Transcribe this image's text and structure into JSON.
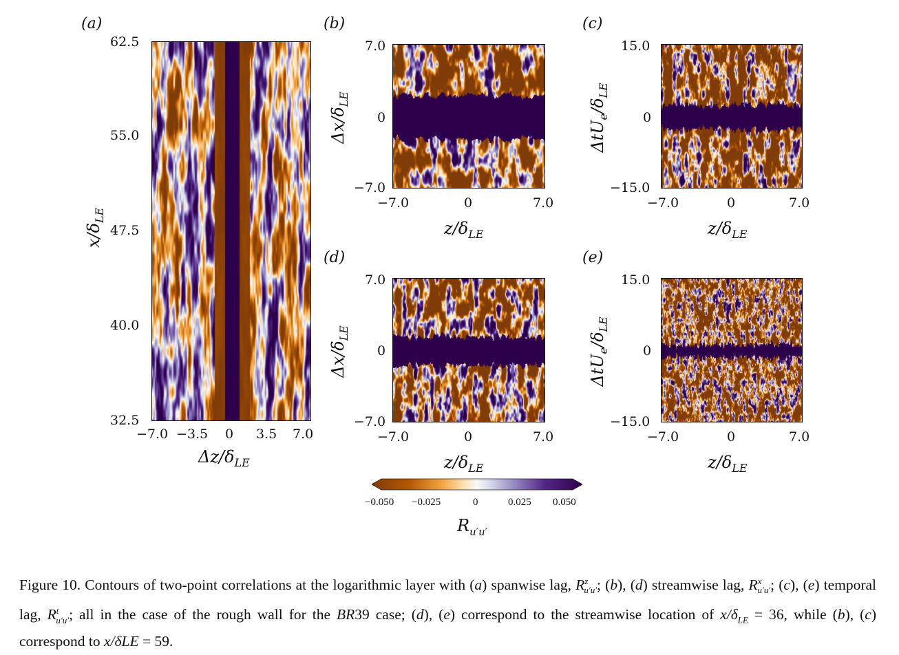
{
  "panels": {
    "a": {
      "label": "(a)",
      "y_ticks": [
        "62.5",
        "55.0",
        "47.5",
        "40.0",
        "32.5"
      ],
      "x_ticks": [
        "−7.0",
        "−3.5",
        "0",
        "3.5",
        "7.0"
      ],
      "xlabel": "Δz/δ",
      "xlabel_sub": "LE",
      "ylabel": "x/δ",
      "ylabel_sub": "LE"
    },
    "b": {
      "label": "(b)",
      "y_ticks": [
        "7.0",
        "0",
        "−7.0"
      ],
      "x_ticks": [
        "−7.0",
        "0",
        "7.0"
      ],
      "xlabel": "z/δ",
      "xlabel_sub": "LE",
      "ylabel": "Δx/δ",
      "ylabel_sub": "LE"
    },
    "c": {
      "label": "(c)",
      "y_ticks": [
        "15.0",
        "0",
        "−15.0"
      ],
      "x_ticks": [
        "−7.0",
        "0",
        "7.0"
      ],
      "xlabel": "z/δ",
      "xlabel_sub": "LE",
      "ylabel": "ΔtU",
      "ylabel_sub": "e",
      "ylabel_tail": "/δ",
      "ylabel_sub2": "LE"
    },
    "d": {
      "label": "(d)",
      "y_ticks": [
        "7.0",
        "0",
        "−7.0"
      ],
      "x_ticks": [
        "−7.0",
        "0",
        "7.0"
      ],
      "xlabel": "z/δ",
      "xlabel_sub": "LE",
      "ylabel": "Δx/δ",
      "ylabel_sub": "LE"
    },
    "e": {
      "label": "(e)",
      "y_ticks": [
        "15.0",
        "0",
        "−15.0"
      ],
      "x_ticks": [
        "−7.0",
        "0",
        "7.0"
      ],
      "xlabel": "z/δ",
      "xlabel_sub": "LE",
      "ylabel": "ΔtU",
      "ylabel_sub": "e",
      "ylabel_tail": "/δ",
      "ylabel_sub2": "LE"
    }
  },
  "colorbar": {
    "ticks": [
      "−0.050",
      "−0.025",
      "0",
      "0.025",
      "0.050"
    ],
    "label": "R",
    "label_sub": "u′u′",
    "colors": {
      "neg": "#7f3b08",
      "mid": "#f7f7f7",
      "pos": "#2d004b"
    },
    "range": [
      -0.05,
      0.05
    ]
  },
  "chart_data": [
    {
      "type": "heatmap",
      "panel": "a",
      "title": "(a)",
      "xlabel": "Δz/δLE",
      "ylabel": "x/δLE",
      "xlim": [
        -7.0,
        7.0
      ],
      "ylim": [
        32.5,
        62.5
      ],
      "colorbar_range": [
        -0.05,
        0.05
      ]
    },
    {
      "type": "heatmap",
      "panel": "b",
      "title": "(b)",
      "xlabel": "z/δLE",
      "ylabel": "Δx/δLE",
      "xlim": [
        -7.0,
        7.0
      ],
      "ylim": [
        -7.0,
        7.0
      ],
      "colorbar_range": [
        -0.05,
        0.05
      ]
    },
    {
      "type": "heatmap",
      "panel": "c",
      "title": "(c)",
      "xlabel": "z/δLE",
      "ylabel": "ΔtUe/δLE",
      "xlim": [
        -7.0,
        7.0
      ],
      "ylim": [
        -15.0,
        15.0
      ],
      "colorbar_range": [
        -0.05,
        0.05
      ]
    },
    {
      "type": "heatmap",
      "panel": "d",
      "title": "(d)",
      "xlabel": "z/δLE",
      "ylabel": "Δx/δLE",
      "xlim": [
        -7.0,
        7.0
      ],
      "ylim": [
        -7.0,
        7.0
      ],
      "colorbar_range": [
        -0.05,
        0.05
      ]
    },
    {
      "type": "heatmap",
      "panel": "e",
      "title": "(e)",
      "xlabel": "z/δLE",
      "ylabel": "ΔtUe/δLE",
      "xlim": [
        -7.0,
        7.0
      ],
      "ylim": [
        -15.0,
        15.0
      ],
      "colorbar_range": [
        -0.05,
        0.05
      ]
    }
  ],
  "caption": {
    "figure_label": "Figure 10.",
    "parts": [
      " Contours of two-point correlations at the logarithmic layer with (",
      "a",
      ") spanwise lag, ",
      "R",
      "; (",
      "b",
      "), (",
      "d",
      ") streamwise lag, ",
      "R",
      "; (",
      "c",
      "), (",
      "e",
      ") temporal lag, ",
      "R",
      "; all in the case of the rough wall for the ",
      "BR",
      "39 case; (",
      "d",
      "), (",
      "e",
      ") correspond to the streamwise location of ",
      "x/δ",
      " = 36, while (",
      "b",
      "), (",
      "c",
      ") correspond to ",
      "x/δLE",
      " = 59."
    ],
    "sup_z": "z",
    "sup_x": "x",
    "sup_t": "t",
    "sub_uu": "u′u′",
    "sub_le": "LE"
  }
}
